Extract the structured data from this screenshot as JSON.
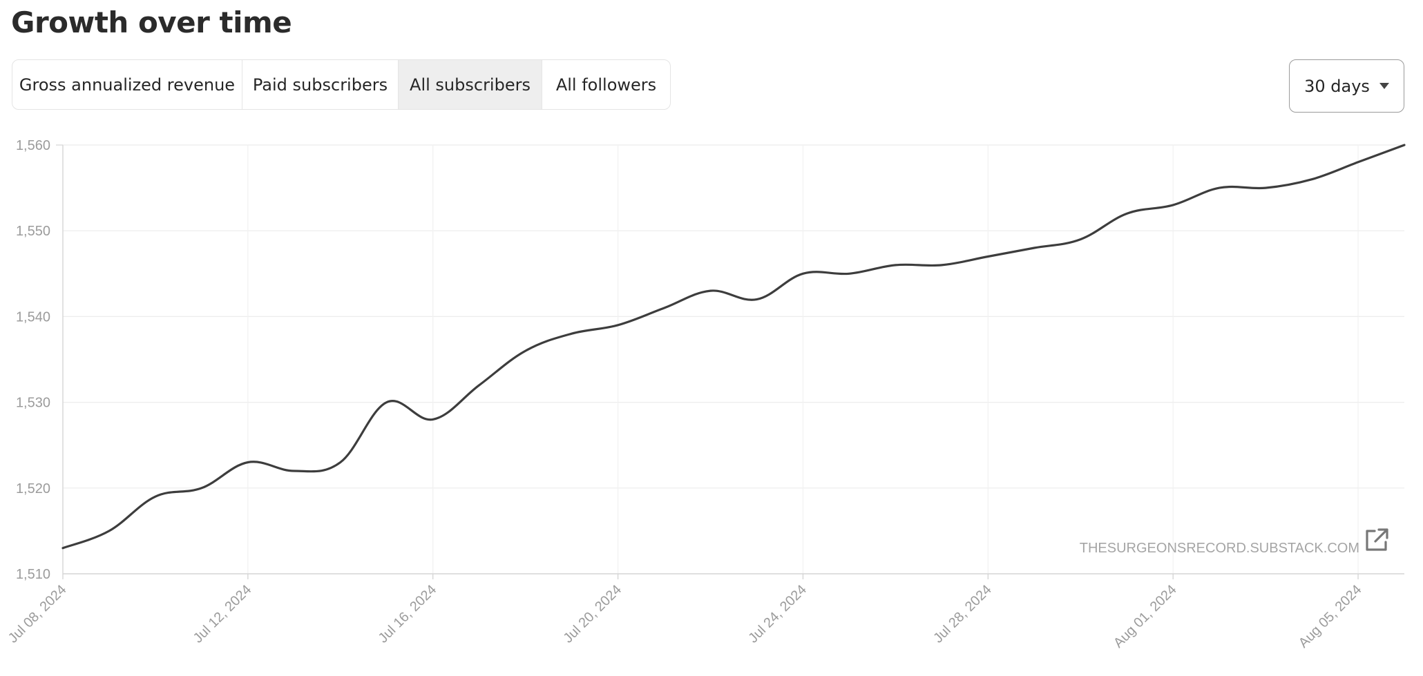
{
  "header": {
    "title": "Growth over time"
  },
  "tabs": [
    {
      "label": "Gross annualized revenue",
      "active": false
    },
    {
      "label": "Paid subscribers",
      "active": false
    },
    {
      "label": "All subscribers",
      "active": true
    },
    {
      "label": "All followers",
      "active": false
    }
  ],
  "range": {
    "label": "30 days",
    "icon": "caret-down-icon"
  },
  "watermark": {
    "text": "THESURGEONSRECORD.SUBSTACK.COM",
    "icon": "external-link-icon"
  },
  "chart_data": {
    "type": "line",
    "title": "",
    "xlabel": "",
    "ylabel": "",
    "ylim": [
      1510,
      1560
    ],
    "yticks": [
      1510,
      1520,
      1530,
      1540,
      1550,
      1560
    ],
    "ytick_labels": [
      "1,510",
      "1,520",
      "1,530",
      "1,540",
      "1,550",
      "1,560"
    ],
    "xlim": [
      "2024-07-08",
      "2024-08-06"
    ],
    "xticks": [
      "2024-07-08",
      "2024-07-12",
      "2024-07-16",
      "2024-07-20",
      "2024-07-24",
      "2024-07-28",
      "2024-08-01",
      "2024-08-05"
    ],
    "xtick_labels": [
      "Jul 08, 2024",
      "Jul 12, 2024",
      "Jul 16, 2024",
      "Jul 20, 2024",
      "Jul 24, 2024",
      "Jul 28, 2024",
      "Aug 01, 2024",
      "Aug 05, 2024"
    ],
    "grid": true,
    "line_color": "#3d3d3d",
    "series": [
      {
        "x": [
          "2024-07-08",
          "2024-07-09",
          "2024-07-10",
          "2024-07-11",
          "2024-07-12",
          "2024-07-13",
          "2024-07-14",
          "2024-07-15",
          "2024-07-16",
          "2024-07-17",
          "2024-07-18",
          "2024-07-19",
          "2024-07-20",
          "2024-07-21",
          "2024-07-22",
          "2024-07-23",
          "2024-07-24",
          "2024-07-25",
          "2024-07-26",
          "2024-07-27",
          "2024-07-28",
          "2024-07-29",
          "2024-07-30",
          "2024-07-31",
          "2024-08-01",
          "2024-08-02",
          "2024-08-03",
          "2024-08-04",
          "2024-08-05",
          "2024-08-06"
        ],
        "values": [
          1513,
          1515,
          1519,
          1520,
          1523,
          1522,
          1523,
          1530,
          1528,
          1532,
          1536,
          1538,
          1539,
          1541,
          1543,
          1542,
          1545,
          1545,
          1546,
          1546,
          1547,
          1548,
          1549,
          1552,
          1553,
          1555,
          1555,
          1556,
          1558,
          1560
        ]
      }
    ]
  }
}
